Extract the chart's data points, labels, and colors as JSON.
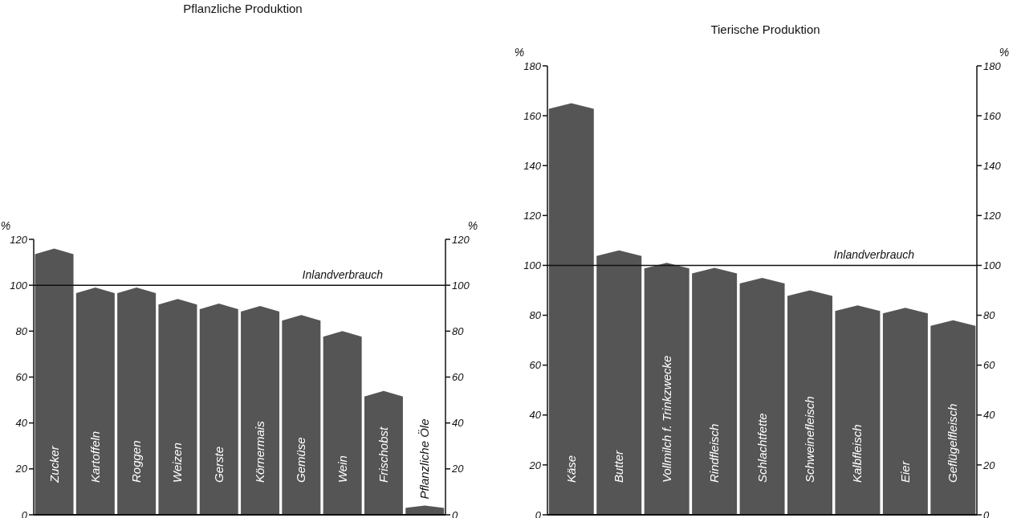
{
  "chart_data": [
    {
      "type": "bar",
      "title": "Pflanzliche Produktion",
      "ylabel": "%",
      "y2label": "%",
      "categories": [
        "Zucker",
        "Kartoffeln",
        "Roggen",
        "Weizen",
        "Gerste",
        "Körnermais",
        "Gemüse",
        "Wein",
        "Frischobst",
        "Pflanzliche Öle"
      ],
      "values": [
        116,
        99,
        99,
        94,
        92,
        91,
        87,
        80,
        54,
        4
      ],
      "color": "#555555",
      "ylim": [
        0,
        120
      ],
      "yticks": [
        0,
        20,
        40,
        60,
        80,
        100,
        120
      ],
      "y2lim": [
        0,
        120
      ],
      "y2ticks": [
        0,
        20,
        40,
        60,
        80,
        100,
        120
      ],
      "ref_lines": [
        {
          "axis": "y",
          "value": 100,
          "label": "Inlandverbrauch"
        }
      ]
    },
    {
      "type": "bar",
      "title": "Tierische Produktion",
      "ylabel": "%",
      "y2label": "%",
      "categories": [
        "Käse",
        "Butter",
        "Vollmilch f. Trinkzwecke",
        "Rindfleisch",
        "Schlachtfette",
        "Schweinefleisch",
        "Kalbfleisch",
        "Eier",
        "Geflügelfleisch"
      ],
      "values": [
        165,
        106,
        101,
        99,
        95,
        90,
        84,
        83,
        78
      ],
      "color": "#555555",
      "ylim": [
        0,
        180
      ],
      "yticks": [
        0,
        20,
        40,
        60,
        80,
        100,
        120,
        140,
        160,
        180
      ],
      "y2lim": [
        0,
        180
      ],
      "y2ticks": [
        0,
        20,
        40,
        60,
        80,
        100,
        120,
        140,
        160,
        180
      ],
      "ref_lines": [
        {
          "axis": "y",
          "value": 100,
          "label": "Inlandverbrauch"
        }
      ]
    }
  ]
}
